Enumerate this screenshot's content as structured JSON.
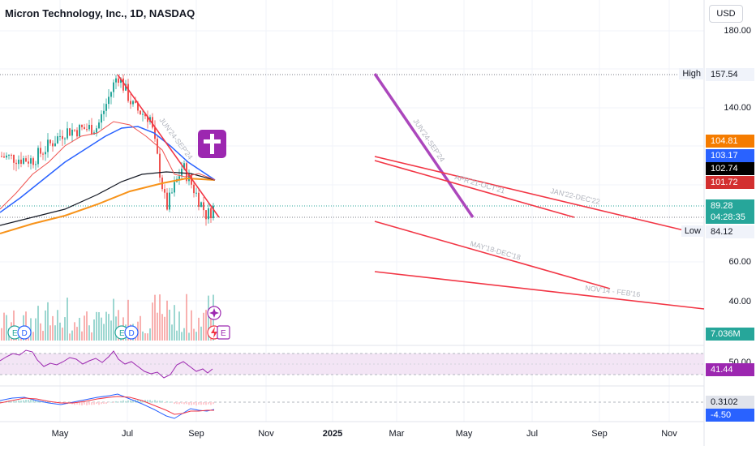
{
  "title": "Micron Technology, Inc., 1D, NASDAQ",
  "currency": "USD",
  "price_axis": [
    "180.00",
    "140.00",
    "60.00",
    "40.00"
  ],
  "markers": {
    "high_label": "High",
    "high_value": "157.54",
    "low_label": "Low",
    "low_value": "84.12"
  },
  "price_tags": [
    {
      "value": "104.81",
      "color": "#f57c00"
    },
    {
      "value": "103.17",
      "color": "#2962ff"
    },
    {
      "value": "102.74",
      "color": "#000000"
    },
    {
      "value": "101.72",
      "color": "#d32f2f"
    }
  ],
  "last_price": {
    "value": "89.28",
    "countdown": "04:28:35",
    "color": "#26a69a"
  },
  "volume_tag": {
    "value": "7.036M",
    "color": "#26a69a"
  },
  "rsi_tag": {
    "value": "41.44",
    "color": "#9c27b0"
  },
  "macd_tags": [
    {
      "value": "0.3102",
      "color": "#e0e3eb"
    },
    {
      "value": "-4.50",
      "color": "#2962ff"
    }
  ],
  "x_axis": [
    "May",
    "Jul",
    "Sep",
    "Nov",
    "2025",
    "Mar",
    "May",
    "Jul",
    "Sep",
    "Nov"
  ],
  "annotations": [
    "JUN'24-SEP'24",
    "JUN'24-SEP'24",
    "APR'21-OCT'21",
    "JAN'22-DEC'22",
    "MAY'18-DEC'18",
    "NOV'14 - FEB'16"
  ],
  "event_icons": [
    "E",
    "E",
    "E"
  ],
  "chart_data": {
    "type": "line",
    "title": "Micron Technology, Inc., 1D, NASDAQ",
    "price_range": [
      30,
      190
    ],
    "price_series_approx": [
      {
        "date": "2024-04",
        "close": 115
      },
      {
        "date": "2024-05-01",
        "close": 113
      },
      {
        "date": "2024-05-15",
        "close": 128
      },
      {
        "date": "2024-06-01",
        "close": 130
      },
      {
        "date": "2024-06-18",
        "close": 157.54
      },
      {
        "date": "2024-07-01",
        "close": 140
      },
      {
        "date": "2024-07-15",
        "close": 135
      },
      {
        "date": "2024-08-05",
        "close": 88
      },
      {
        "date": "2024-08-20",
        "close": 110
      },
      {
        "date": "2024-09-06",
        "close": 84.12
      },
      {
        "date": "2024-09-13",
        "close": 89.28
      }
    ],
    "moving_averages": [
      {
        "name": "orange",
        "last": 104.81
      },
      {
        "name": "blue",
        "last": 103.17
      },
      {
        "name": "black",
        "last": 102.74
      },
      {
        "name": "red",
        "last": 101.72
      }
    ],
    "high": 157.54,
    "low": 84.12,
    "last": 89.28,
    "volume_last": "7.036M",
    "rsi_last": 41.44,
    "macd": [
      0.3102,
      -4.5
    ]
  }
}
